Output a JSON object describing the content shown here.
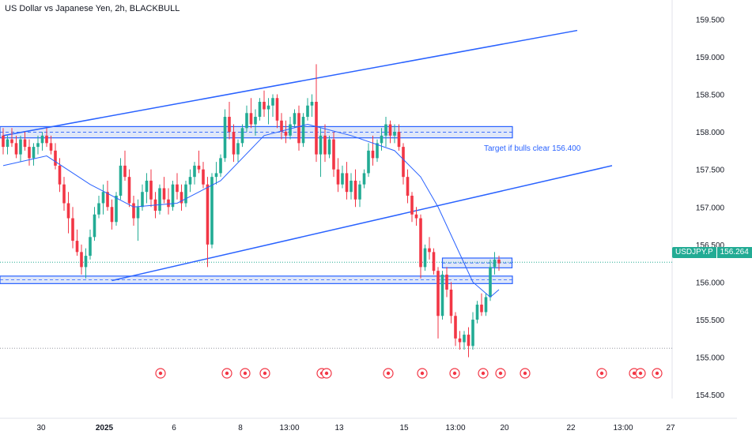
{
  "title": "US Dollar vs Japanese Yen, 2h, BLACKBULL",
  "annotation": "Target if bulls clear 156.400",
  "last_price": {
    "symbol": "USDJPY.P",
    "value": "156.264",
    "color": "#22ab94"
  },
  "colors": {
    "up": "#22ab94",
    "down": "#f23645",
    "drawing": "#2962ff",
    "zone_fill": "#c9d7f5",
    "ma": "#2962ff"
  },
  "chart_data": {
    "type": "candlestick",
    "y_ticks": [
      "159.500",
      "159.000",
      "158.500",
      "158.000",
      "157.500",
      "157.000",
      "156.500",
      "156.000",
      "155.500",
      "155.000",
      "154.500"
    ],
    "ylim": [
      154.45,
      159.65
    ],
    "x_ticks": [
      "30",
      "2025",
      "6",
      "8",
      "13:00",
      "13",
      "15",
      "13:00",
      "20",
      "22",
      "13:00",
      "27"
    ],
    "zones": [
      {
        "low": 157.92,
        "high": 158.07
      },
      {
        "low": 155.98,
        "high": 156.08
      },
      {
        "low": 156.19,
        "high": 156.32
      }
    ],
    "levels": [
      156.265,
      155.12
    ],
    "trendlines": [
      {
        "from": [
          0,
          157.95
        ],
        "to": [
          132,
          159.35
        ]
      },
      {
        "from": [
          25,
          156.02
        ],
        "to": [
          140,
          157.55
        ]
      }
    ],
    "candles": [
      [
        157.95,
        158.05,
        157.7,
        157.8
      ],
      [
        157.8,
        157.95,
        157.7,
        157.9
      ],
      [
        157.9,
        158.05,
        157.8,
        157.85
      ],
      [
        157.85,
        157.95,
        157.65,
        157.7
      ],
      [
        157.7,
        157.95,
        157.6,
        157.9
      ],
      [
        157.9,
        158.0,
        157.75,
        157.8
      ],
      [
        157.8,
        157.9,
        157.55,
        157.65
      ],
      [
        157.65,
        157.85,
        157.55,
        157.8
      ],
      [
        157.8,
        157.95,
        157.7,
        157.85
      ],
      [
        157.85,
        158.0,
        157.75,
        157.95
      ],
      [
        157.95,
        158.05,
        157.8,
        157.85
      ],
      [
        157.85,
        157.95,
        157.7,
        157.75
      ],
      [
        157.75,
        157.85,
        157.5,
        157.55
      ],
      [
        157.55,
        157.65,
        157.2,
        157.3
      ],
      [
        157.3,
        157.4,
        156.95,
        157.05
      ],
      [
        157.05,
        157.2,
        156.65,
        156.85
      ],
      [
        156.85,
        157.0,
        156.45,
        156.55
      ],
      [
        156.55,
        156.7,
        156.35,
        156.4
      ],
      [
        156.4,
        156.5,
        156.1,
        156.2
      ],
      [
        156.2,
        156.45,
        156.05,
        156.35
      ],
      [
        156.35,
        156.7,
        156.3,
        156.6
      ],
      [
        156.6,
        157.0,
        156.55,
        156.9
      ],
      [
        156.9,
        157.15,
        156.85,
        157.05
      ],
      [
        157.05,
        157.3,
        156.9,
        157.2
      ],
      [
        157.2,
        157.35,
        156.95,
        157.0
      ],
      [
        157.0,
        157.1,
        156.7,
        156.8
      ],
      [
        156.8,
        157.2,
        156.75,
        157.15
      ],
      [
        157.15,
        157.65,
        157.1,
        157.55
      ],
      [
        157.55,
        157.75,
        157.35,
        157.4
      ],
      [
        157.4,
        157.5,
        157.0,
        157.05
      ],
      [
        157.05,
        157.15,
        156.75,
        156.85
      ],
      [
        156.85,
        157.1,
        156.55,
        157.0
      ],
      [
        157.0,
        157.3,
        156.95,
        157.2
      ],
      [
        157.2,
        157.45,
        157.05,
        157.35
      ],
      [
        157.35,
        157.5,
        157.0,
        157.1
      ],
      [
        157.1,
        157.2,
        156.85,
        156.95
      ],
      [
        156.95,
        157.3,
        156.9,
        157.25
      ],
      [
        157.25,
        157.4,
        157.05,
        157.1
      ],
      [
        157.1,
        157.25,
        156.9,
        157.0
      ],
      [
        157.0,
        157.35,
        156.95,
        157.3
      ],
      [
        157.3,
        157.45,
        157.1,
        157.2
      ],
      [
        157.2,
        157.3,
        156.95,
        157.05
      ],
      [
        157.05,
        157.35,
        157.0,
        157.3
      ],
      [
        157.3,
        157.5,
        157.2,
        157.4
      ],
      [
        157.4,
        157.6,
        157.3,
        157.55
      ],
      [
        157.55,
        157.75,
        157.45,
        157.5
      ],
      [
        157.5,
        157.6,
        157.25,
        157.3
      ],
      [
        157.3,
        157.4,
        156.2,
        156.5
      ],
      [
        156.5,
        157.45,
        156.45,
        157.4
      ],
      [
        157.4,
        157.6,
        157.3,
        157.45
      ],
      [
        157.45,
        157.7,
        157.4,
        157.65
      ],
      [
        157.65,
        158.3,
        157.6,
        158.2
      ],
      [
        158.2,
        158.4,
        157.9,
        158.0
      ],
      [
        158.0,
        158.1,
        157.6,
        157.7
      ],
      [
        157.7,
        157.9,
        157.6,
        157.85
      ],
      [
        157.85,
        158.1,
        157.8,
        158.05
      ],
      [
        158.05,
        158.35,
        158.0,
        158.25
      ],
      [
        158.25,
        158.45,
        158.05,
        158.1
      ],
      [
        158.1,
        158.3,
        157.95,
        158.2
      ],
      [
        158.2,
        158.45,
        158.15,
        158.4
      ],
      [
        158.4,
        158.55,
        158.2,
        158.3
      ],
      [
        158.3,
        158.45,
        158.1,
        158.35
      ],
      [
        158.35,
        158.5,
        158.2,
        158.45
      ],
      [
        158.45,
        158.5,
        158.05,
        158.15
      ],
      [
        158.15,
        158.25,
        157.9,
        158.0
      ],
      [
        158.0,
        158.15,
        157.85,
        157.95
      ],
      [
        157.95,
        158.2,
        157.9,
        158.1
      ],
      [
        158.1,
        158.3,
        158.05,
        158.25
      ],
      [
        158.25,
        158.35,
        157.75,
        157.85
      ],
      [
        157.85,
        158.25,
        157.8,
        158.2
      ],
      [
        158.2,
        158.45,
        158.15,
        158.35
      ],
      [
        158.35,
        158.5,
        158.2,
        158.4
      ],
      [
        158.4,
        158.9,
        157.6,
        157.7
      ],
      [
        157.7,
        158.05,
        157.4,
        157.95
      ],
      [
        157.95,
        158.1,
        157.6,
        157.7
      ],
      [
        157.7,
        157.95,
        157.65,
        157.9
      ],
      [
        157.9,
        158.0,
        157.4,
        157.5
      ],
      [
        157.5,
        157.65,
        157.2,
        157.3
      ],
      [
        157.3,
        157.55,
        157.25,
        157.45
      ],
      [
        157.45,
        157.6,
        157.1,
        157.2
      ],
      [
        157.2,
        157.45,
        157.1,
        157.35
      ],
      [
        157.35,
        157.5,
        157.0,
        157.1
      ],
      [
        157.1,
        157.35,
        157.0,
        157.3
      ],
      [
        157.3,
        157.5,
        157.25,
        157.45
      ],
      [
        157.45,
        157.85,
        157.4,
        157.75
      ],
      [
        157.75,
        157.95,
        157.55,
        157.65
      ],
      [
        157.65,
        157.9,
        157.6,
        157.85
      ],
      [
        157.85,
        158.05,
        157.75,
        157.95
      ],
      [
        157.95,
        158.2,
        157.8,
        158.1
      ],
      [
        158.1,
        158.15,
        157.85,
        157.95
      ],
      [
        157.95,
        158.1,
        157.85,
        158.0
      ],
      [
        158.0,
        158.1,
        157.75,
        157.8
      ],
      [
        157.8,
        157.85,
        157.3,
        157.4
      ],
      [
        157.4,
        157.5,
        157.05,
        157.15
      ],
      [
        157.15,
        157.2,
        156.8,
        156.9
      ],
      [
        156.9,
        157.0,
        156.75,
        156.85
      ],
      [
        156.85,
        156.9,
        156.05,
        156.2
      ],
      [
        156.2,
        156.5,
        156.15,
        156.45
      ],
      [
        156.45,
        156.6,
        156.3,
        156.4
      ],
      [
        156.4,
        156.45,
        156.1,
        156.15
      ],
      [
        156.15,
        156.2,
        155.25,
        155.55
      ],
      [
        155.55,
        156.15,
        155.5,
        156.1
      ],
      [
        156.1,
        156.2,
        155.8,
        155.9
      ],
      [
        155.9,
        156.0,
        155.45,
        155.55
      ],
      [
        155.55,
        155.6,
        155.15,
        155.25
      ],
      [
        155.25,
        155.35,
        155.1,
        155.2
      ],
      [
        155.2,
        155.35,
        155.1,
        155.3
      ],
      [
        155.3,
        155.4,
        155.0,
        155.15
      ],
      [
        155.15,
        155.6,
        155.1,
        155.5
      ],
      [
        155.5,
        155.75,
        155.45,
        155.7
      ],
      [
        155.7,
        155.85,
        155.55,
        155.6
      ],
      [
        155.6,
        155.85,
        155.55,
        155.8
      ],
      [
        155.8,
        156.3,
        155.75,
        156.2
      ],
      [
        156.2,
        156.4,
        156.1,
        156.3
      ],
      [
        156.3,
        156.35,
        156.15,
        156.25
      ]
    ],
    "ma": [
      [
        0,
        157.55
      ],
      [
        10,
        157.68
      ],
      [
        20,
        157.3
      ],
      [
        30,
        157.0
      ],
      [
        40,
        157.05
      ],
      [
        50,
        157.35
      ],
      [
        60,
        157.95
      ],
      [
        70,
        158.1
      ],
      [
        80,
        157.95
      ],
      [
        90,
        157.75
      ],
      [
        96,
        157.4
      ],
      [
        100,
        157.0
      ],
      [
        104,
        156.5
      ],
      [
        108,
        156.0
      ],
      [
        112,
        155.8
      ],
      [
        114,
        155.9
      ]
    ]
  }
}
